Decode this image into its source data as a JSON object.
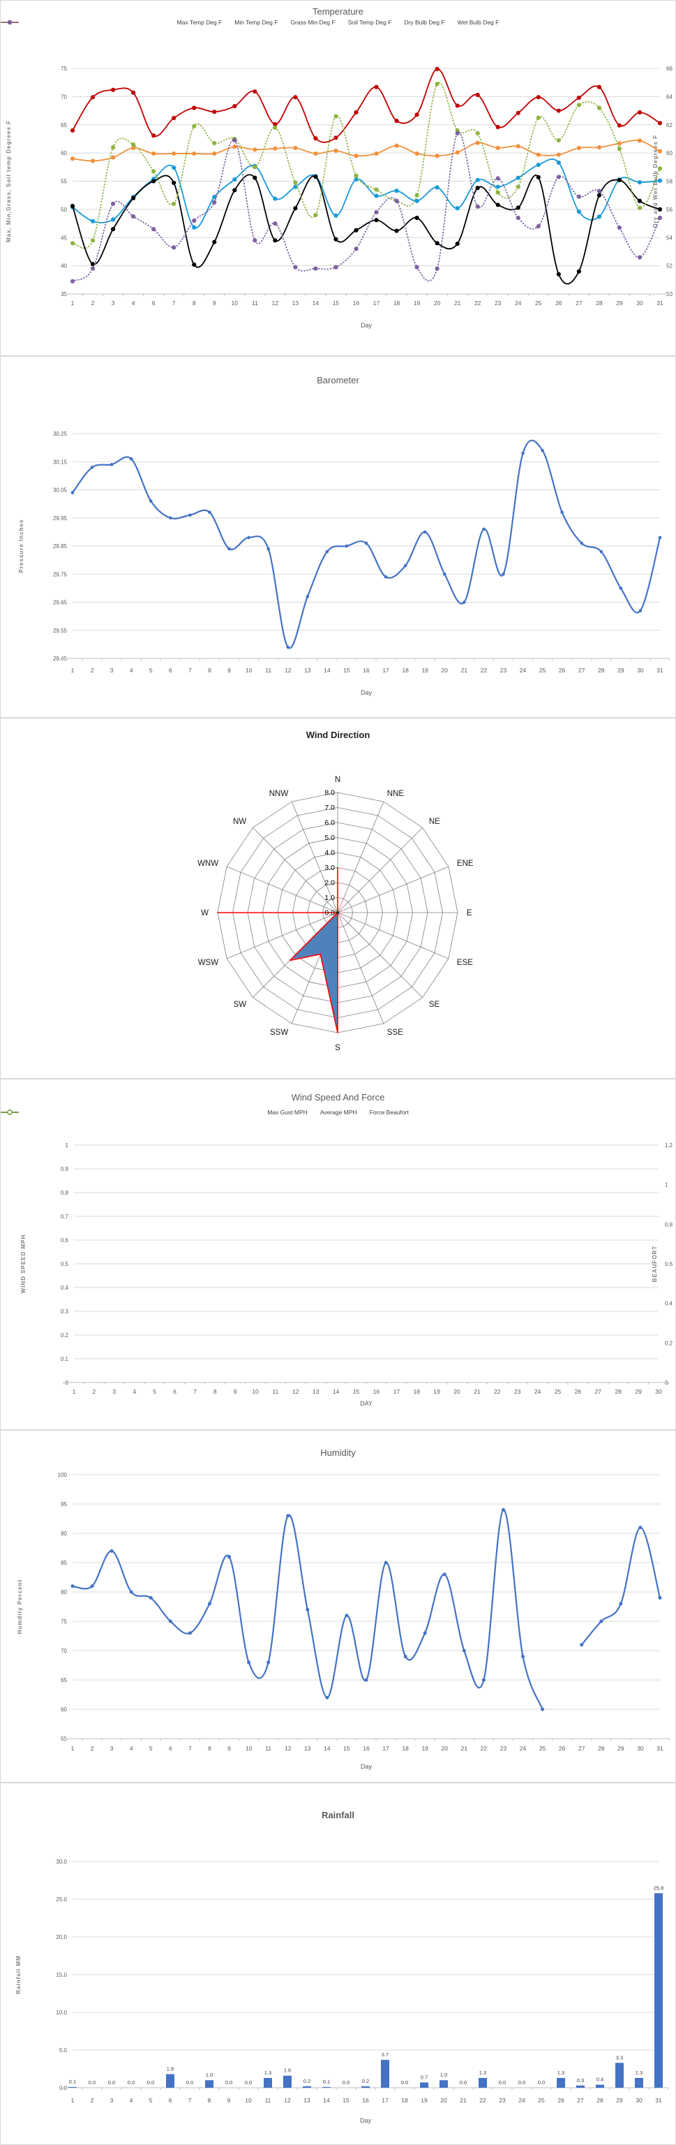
{
  "chart_data": [
    {
      "id": "temperature",
      "type": "line",
      "title": "Temperature",
      "xlabel": "Day",
      "categories": [
        "1",
        "2",
        "3",
        "4",
        "6",
        "7",
        "8",
        "9",
        "10",
        "11",
        "12",
        "13",
        "14",
        "15",
        "16",
        "17",
        "18",
        "19",
        "20",
        "21",
        "22",
        "23",
        "24",
        "25",
        "26",
        "27",
        "28",
        "29",
        "30",
        "31"
      ],
      "left_axis": {
        "label": "Max, Min,Grass, Soil temp Degrees F",
        "min": 35,
        "max": 75,
        "step": 5,
        "decimals": 0
      },
      "right_axis": {
        "label": "Dry and Wet Bulb Degrees F",
        "min": 50,
        "max": 66,
        "step": 2,
        "decimals": 0
      },
      "grid": true,
      "legend_position": "top",
      "series": [
        {
          "name": "Max Temp Deg F",
          "color": "#C00000",
          "axis": "left",
          "style": "solid",
          "values": [
            64.0,
            69.9,
            71.2,
            70.7,
            63.1,
            66.2,
            68.0,
            67.3,
            68.3,
            70.9,
            65.1,
            69.9,
            62.6,
            62.7,
            67.2,
            71.7,
            65.7,
            66.8,
            74.9,
            68.4,
            70.3,
            64.6,
            67.1,
            69.9,
            67.5,
            69.8,
            71.7,
            64.9,
            67.2,
            65.3
          ]
        },
        {
          "name": "Min Temp Deg F",
          "color": "#189BD8",
          "axis": "left",
          "style": "solid",
          "values": [
            50.4,
            47.9,
            48.2,
            52.2,
            55.4,
            57.4,
            46.8,
            52.2,
            55.3,
            57.7,
            51.9,
            54.0,
            55.9,
            48.9,
            55.3,
            52.4,
            53.3,
            51.5,
            53.9,
            50.2,
            55.2,
            54.0,
            55.6,
            57.9,
            58.3,
            49.6,
            48.7,
            55.3,
            54.8,
            55.1
          ]
        },
        {
          "name": "Grass Min Deg F",
          "color": "#000000",
          "axis": "left",
          "style": "solid",
          "values": [
            50.6,
            40.3,
            46.5,
            52.0,
            55.0,
            54.7,
            40.2,
            44.2,
            53.4,
            55.6,
            44.5,
            50.2,
            55.8,
            44.7,
            46.3,
            48.1,
            46.2,
            48.5,
            44.0,
            43.9,
            53.8,
            50.8,
            50.3,
            55.7,
            38.5,
            39.0,
            52.5,
            55.2,
            51.5,
            50.0
          ]
        },
        {
          "name": "Soil Temp Deg F",
          "color": "#F0913D",
          "axis": "left",
          "style": "solid",
          "values": [
            59.0,
            58.6,
            59.2,
            60.9,
            59.9,
            59.9,
            59.9,
            59.9,
            61.1,
            60.6,
            60.8,
            60.9,
            59.9,
            60.4,
            59.5,
            59.9,
            61.3,
            59.9,
            59.5,
            60.1,
            61.8,
            60.9,
            61.2,
            59.7,
            59.7,
            60.9,
            61.0,
            61.7,
            62.2,
            60.3
          ]
        },
        {
          "name": "Dry Bulb Deg F",
          "color": "#8CB43F",
          "axis": "right",
          "style": "dotted",
          "values": [
            53.6,
            53.8,
            60.4,
            60.6,
            58.7,
            56.4,
            61.9,
            60.7,
            61.0,
            59.0,
            61.8,
            57.9,
            55.6,
            62.6,
            58.4,
            57.4,
            56.6,
            57.0,
            64.9,
            61.6,
            61.4,
            57.2,
            57.6,
            62.5,
            60.9,
            63.4,
            63.2,
            60.3,
            56.1,
            58.9
          ]
        },
        {
          "name": "Wet Bulb Deg F",
          "color": "#7D60A0",
          "axis": "right",
          "style": "dotted",
          "values": [
            50.9,
            51.8,
            56.4,
            55.5,
            54.6,
            53.3,
            55.2,
            56.5,
            60.9,
            53.8,
            55.0,
            51.9,
            51.8,
            51.9,
            53.2,
            55.8,
            56.6,
            51.9,
            51.8,
            61.4,
            56.2,
            58.2,
            55.4,
            54.8,
            58.3,
            56.9,
            57.3,
            54.7,
            52.6,
            55.4
          ]
        }
      ]
    },
    {
      "id": "barometer",
      "type": "line",
      "title": "Barometer",
      "xlabel": "Day",
      "categories": [
        "1",
        "2",
        "3",
        "4",
        "5",
        "6",
        "7",
        "8",
        "9",
        "10",
        "11",
        "12",
        "13",
        "14",
        "15",
        "16",
        "17",
        "18",
        "19",
        "20",
        "21",
        "22",
        "23",
        "24",
        "25",
        "26",
        "27",
        "28",
        "29",
        "30",
        "31"
      ],
      "left_axis": {
        "label": "Pressure Inches",
        "min": 29.45,
        "max": 30.25,
        "step": 0.1,
        "decimals": 2
      },
      "grid": true,
      "series": [
        {
          "name": "Pressure",
          "color": "#4472C4",
          "axis": "left",
          "style": "solid",
          "values": [
            30.04,
            30.13,
            30.14,
            30.16,
            30.01,
            29.95,
            29.96,
            29.97,
            29.84,
            29.88,
            29.84,
            29.49,
            29.67,
            29.83,
            29.85,
            29.86,
            29.74,
            29.78,
            29.9,
            29.75,
            29.65,
            29.91,
            29.75,
            30.18,
            30.19,
            29.97,
            29.86,
            29.83,
            29.7,
            29.62,
            29.88
          ]
        }
      ]
    },
    {
      "id": "wind_direction",
      "type": "radar",
      "title": "Wind Direction",
      "categories": [
        "N",
        "NNE",
        "NE",
        "ENE",
        "E",
        "ESE",
        "SE",
        "SSE",
        "S",
        "SSW",
        "SW",
        "WSW",
        "W",
        "WNW",
        "NW",
        "NNW"
      ],
      "rings": {
        "min": 0,
        "max": 8,
        "step": 1,
        "decimals": 1
      },
      "series": [
        {
          "name": "wind-direction-fill",
          "color": "#4F81BD",
          "fill": "#4F81BD",
          "values": [
            1.3,
            0,
            0,
            0,
            0,
            0,
            0,
            0,
            8.0,
            3.0,
            4.4,
            0,
            7.9,
            0,
            0,
            0
          ]
        },
        {
          "name": "wind-direction-outline",
          "color": "#FF0000",
          "fill": "none",
          "values": [
            3.0,
            0,
            0,
            0,
            0,
            0,
            0,
            0,
            8.0,
            3.0,
            4.5,
            0,
            8.0,
            0,
            0,
            0
          ]
        }
      ]
    },
    {
      "id": "wind_speed_force",
      "type": "line",
      "title": "Wind Speed And Force",
      "xlabel": "DAY",
      "categories": [
        "1",
        "2",
        "3",
        "4",
        "5",
        "6",
        "7",
        "8",
        "9",
        "10",
        "11",
        "12",
        "13",
        "14",
        "15",
        "16",
        "17",
        "18",
        "19",
        "20",
        "21",
        "22",
        "23",
        "24",
        "25",
        "26",
        "27",
        "28",
        "29",
        "30"
      ],
      "left_axis": {
        "label": "WIND SPEED MPH",
        "min": 0,
        "max": 1,
        "step": 0.1,
        "trim": true
      },
      "right_axis": {
        "label": "BEAUFORT",
        "min": 0,
        "max": 1.2,
        "step": 0.2,
        "trim": true
      },
      "grid": true,
      "legend_position": "top",
      "legend_marker": "open",
      "series": [
        {
          "name": "Max Gust MPH",
          "color": "#4472C4",
          "axis": "left",
          "style": "solid",
          "values": []
        },
        {
          "name": "Average MPH",
          "color": "#C00000",
          "axis": "left",
          "style": "solid",
          "values": []
        },
        {
          "name": "Force Beaufort",
          "color": "#70AD47",
          "axis": "right",
          "style": "solid",
          "values": []
        }
      ]
    },
    {
      "id": "humidity",
      "type": "line",
      "title": "Humidity",
      "xlabel": "Day",
      "categories": [
        "1",
        "2",
        "3",
        "4",
        "5",
        "6",
        "7",
        "8",
        "9",
        "10",
        "11",
        "12",
        "13",
        "14",
        "15",
        "16",
        "17",
        "18",
        "19",
        "20",
        "21",
        "22",
        "23",
        "24",
        "25",
        "26",
        "27",
        "28",
        "29",
        "30",
        "31"
      ],
      "left_axis": {
        "label": "Humdity Percent",
        "min": 55,
        "max": 100,
        "step": 5,
        "decimals": 0
      },
      "grid": true,
      "series": [
        {
          "name": "Humidity",
          "color": "#4472C4",
          "axis": "left",
          "style": "solid",
          "values": [
            81,
            81,
            87,
            80,
            79,
            75,
            73,
            78,
            86,
            68,
            68,
            93,
            77,
            62,
            76,
            65,
            85,
            69,
            73,
            83,
            70,
            65,
            94,
            69,
            60,
            null,
            71,
            75,
            78,
            91,
            79
          ]
        }
      ]
    },
    {
      "id": "rainfall",
      "type": "bar",
      "title": "Rainfall",
      "xlabel": "Day",
      "categories": [
        "1",
        "2",
        "3",
        "4",
        "5",
        "6",
        "7",
        "8",
        "9",
        "10",
        "11",
        "12",
        "13",
        "14",
        "15",
        "16",
        "17",
        "18",
        "19",
        "20",
        "21",
        "22",
        "23",
        "24",
        "25",
        "26",
        "27",
        "28",
        "29",
        "30",
        "31"
      ],
      "left_axis": {
        "label": "Rainfall MM",
        "min": 0,
        "max": 30,
        "step": 5,
        "decimals": 1
      },
      "grid": true,
      "bar_color": "#4472C4",
      "label_decimals": 1,
      "values": [
        0.1,
        0.0,
        0.0,
        0.0,
        0.0,
        1.8,
        0.0,
        1.0,
        0.0,
        0.0,
        1.3,
        1.6,
        0.2,
        0.1,
        0.0,
        0.2,
        3.7,
        0.0,
        0.7,
        1.0,
        0.0,
        1.3,
        0.0,
        0.0,
        0.0,
        1.3,
        0.3,
        0.4,
        3.3,
        1.3,
        25.8
      ]
    }
  ]
}
